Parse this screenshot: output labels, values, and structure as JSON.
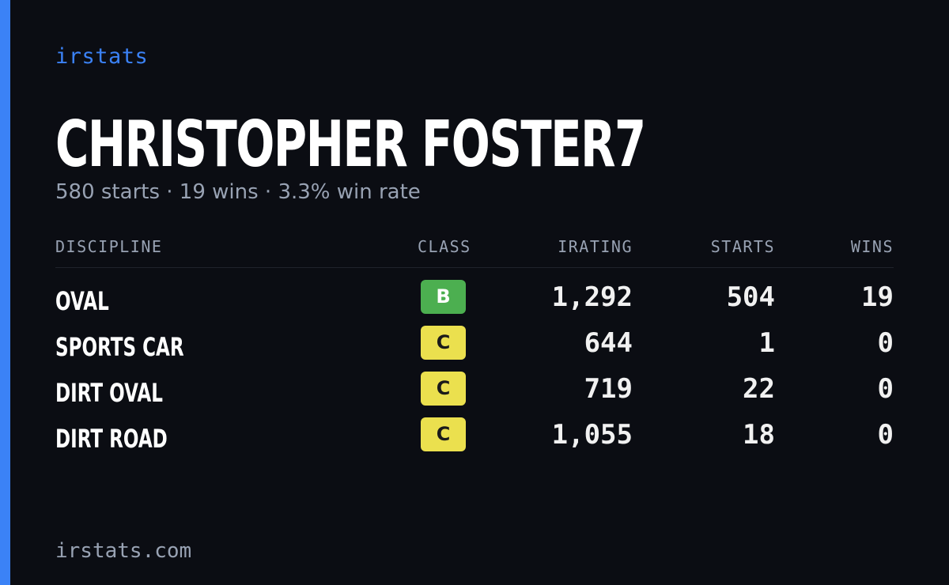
{
  "brand": "irstats",
  "player": {
    "name": "CHRISTOPHER FOSTER7",
    "summary": "580 starts · 19 wins · 3.3% win rate"
  },
  "table": {
    "headers": {
      "discipline": "DISCIPLINE",
      "class": "CLASS",
      "irating": "IRATING",
      "starts": "STARTS",
      "wins": "WINS"
    },
    "rows": [
      {
        "discipline": "OVAL",
        "class": "B",
        "class_color": "#4caf50",
        "class_text_color": "#ffffff",
        "irating": "1,292",
        "starts": "504",
        "wins": "19"
      },
      {
        "discipline": "SPORTS CAR",
        "class": "C",
        "class_color": "#ebe04e",
        "class_text_color": "#1a1a1a",
        "irating": "644",
        "starts": "1",
        "wins": "0"
      },
      {
        "discipline": "DIRT OVAL",
        "class": "C",
        "class_color": "#ebe04e",
        "class_text_color": "#1a1a1a",
        "irating": "719",
        "starts": "22",
        "wins": "0"
      },
      {
        "discipline": "DIRT ROAD",
        "class": "C",
        "class_color": "#ebe04e",
        "class_text_color": "#1a1a1a",
        "irating": "1,055",
        "starts": "18",
        "wins": "0"
      }
    ]
  },
  "footer": {
    "domain": "irstats.com"
  },
  "colors": {
    "background": "#0b0d13",
    "accent": "#3b82f6",
    "muted_text": "#98a2b3"
  }
}
